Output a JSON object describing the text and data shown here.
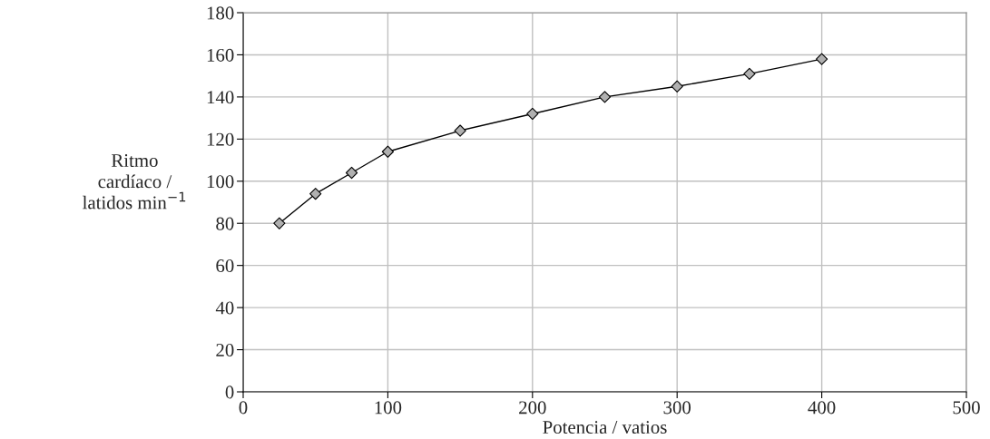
{
  "chart_data": {
    "type": "line",
    "xlabel": "Potencia / vatios",
    "ylabel": "Ritmo\ncardíaco /\nlatidos min$^{−1}$",
    "x": [
      25,
      50,
      75,
      100,
      150,
      200,
      250,
      300,
      350,
      400
    ],
    "series": [
      {
        "color": "#b0b0b0",
        "values": [
          80,
          94,
          104,
          114,
          124,
          132,
          140,
          145,
          151,
          158
        ]
      }
    ],
    "xlim": [
      0,
      500
    ],
    "xticks": [
      0,
      100,
      200,
      300,
      400,
      500
    ],
    "ylim": [
      0,
      180
    ],
    "yticks": [
      0,
      20,
      40,
      60,
      80,
      100,
      120,
      140,
      160,
      180
    ],
    "grid": true,
    "marker": "diamond",
    "line_style": "solid"
  }
}
